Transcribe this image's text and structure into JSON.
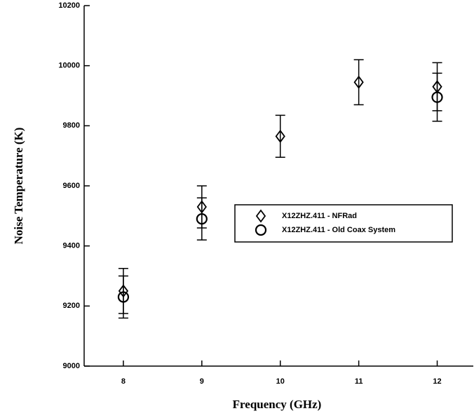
{
  "chart_data": {
    "type": "scatter",
    "x_label": "Frequency (GHz)",
    "y_label": "Noise Temperature (K)",
    "x": [
      8,
      9,
      10,
      11,
      12
    ],
    "xlim": [
      7.5,
      12.46
    ],
    "xticks": [
      8,
      9,
      10,
      11,
      12
    ],
    "ylim": [
      9000,
      10200
    ],
    "yticks": [
      9000,
      9200,
      9400,
      9600,
      9800,
      10000,
      10200
    ],
    "series": [
      {
        "name": "X12ZHZ.411 - NFRad",
        "color": "#000000",
        "marker": "diamond",
        "values": [
          9250,
          9530,
          9765,
          9945,
          9930
        ],
        "errors": [
          75,
          70,
          70,
          75,
          80
        ]
      },
      {
        "name": "X12ZHZ.411 - Old Coax System",
        "color": "#000000",
        "marker": "circle",
        "values": [
          9230,
          9490,
          null,
          null,
          9895
        ],
        "errors": [
          70,
          70,
          null,
          null,
          80
        ]
      }
    ]
  }
}
